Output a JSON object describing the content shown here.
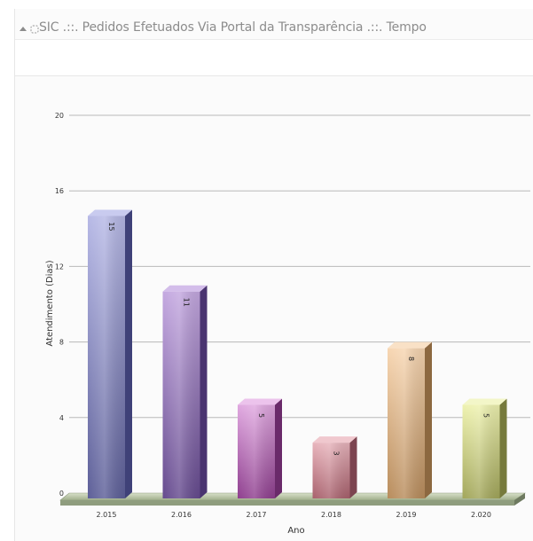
{
  "title": "SIC .::. Pedidos Efetuados Via Portal da Transparência .::. Tempo",
  "icons": [
    "collapse-arrow-icon",
    "grip-icon"
  ],
  "chart_data": {
    "type": "bar",
    "categories": [
      "2.015",
      "2.016",
      "2.017",
      "2.018",
      "2.019",
      "2.020"
    ],
    "values": [
      15,
      11,
      5,
      3,
      8,
      5
    ],
    "xlabel": "Ano",
    "ylabel": "Atendimento (Dias)",
    "ylim": [
      0,
      20
    ],
    "yticks": [
      0,
      4,
      8,
      12,
      16,
      20
    ],
    "grid": true,
    "style": "3d",
    "colors": [
      {
        "top": "#b7b9e6",
        "bottom": "#5d5f98",
        "side": "#3f4178",
        "cap": "#c9cbef"
      },
      {
        "top": "#c4a8e0",
        "bottom": "#654a8e",
        "side": "#4a3470",
        "cap": "#d3bdea"
      },
      {
        "top": "#e0a8e0",
        "bottom": "#8e3e8e",
        "side": "#6a2a6a",
        "cap": "#ecc3ec"
      },
      {
        "top": "#e8b4bc",
        "bottom": "#a8606c",
        "side": "#7c4450",
        "cap": "#f0c8ce"
      },
      {
        "top": "#f7d6b2",
        "bottom": "#b88c5c",
        "side": "#8c6840",
        "cap": "#f9e1c6"
      },
      {
        "top": "#eef2b0",
        "bottom": "#a2a65a",
        "side": "#767a3c",
        "cap": "#f3f6c8"
      }
    ]
  }
}
